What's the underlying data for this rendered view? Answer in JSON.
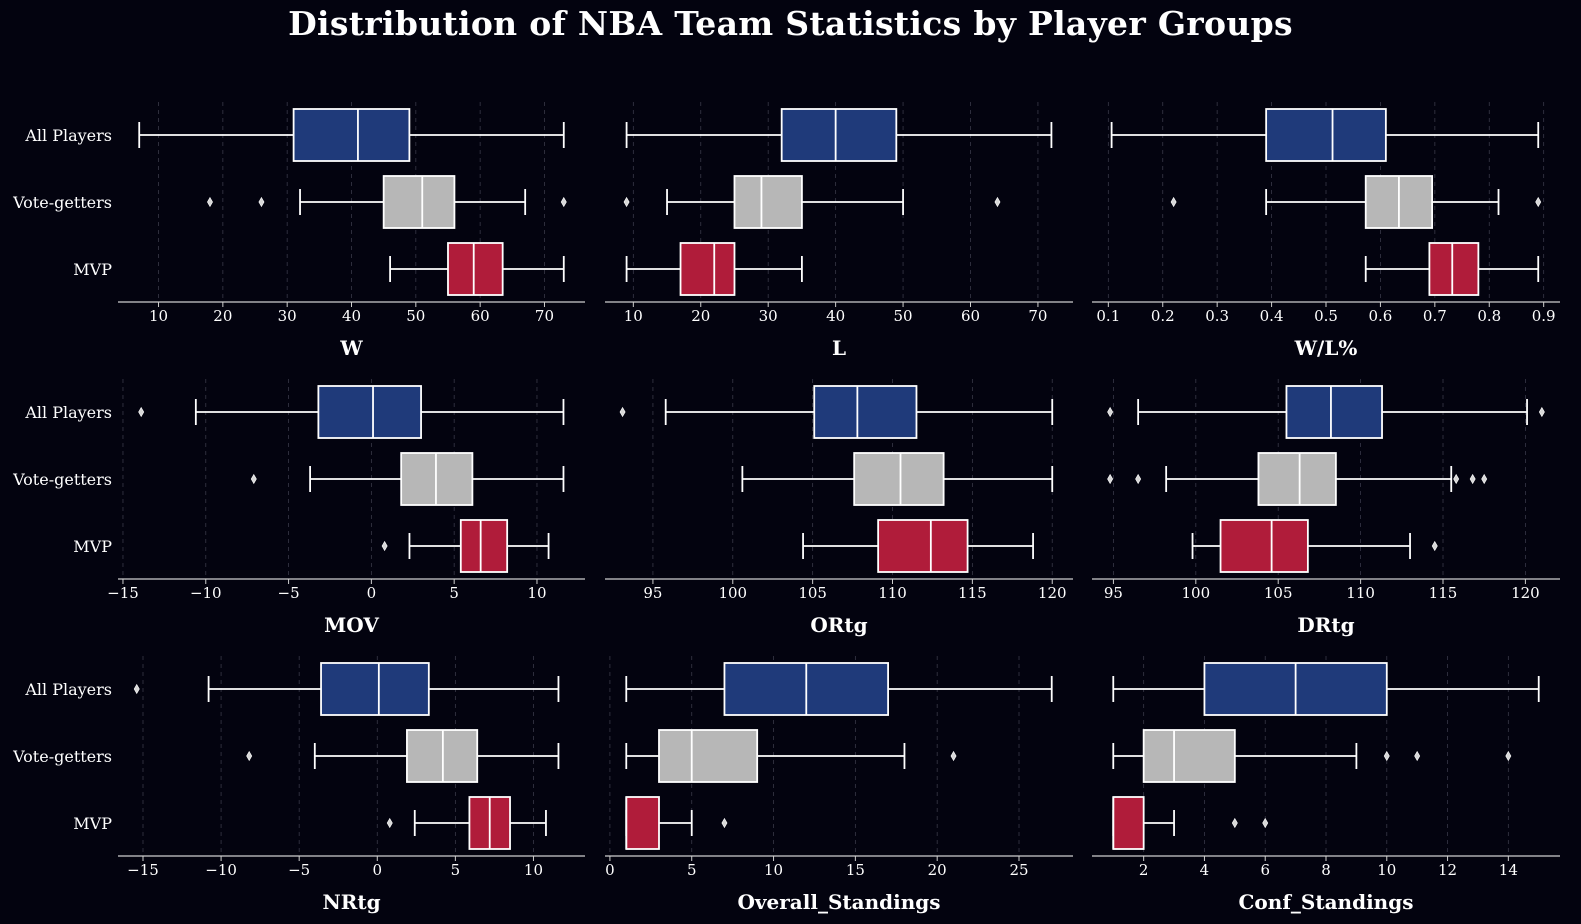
{
  "title": "Distribution of NBA Team Statistics by Player Groups",
  "colors": {
    "background": "#03030f",
    "all_players": "#1f3a7a",
    "vote_getters": "#b7b7b7",
    "mvp": "#b01c3a",
    "grid": "#4a4a5a",
    "text": "#ffffff",
    "axis_line": "#cfcfcf"
  },
  "groups": [
    "All Players",
    "Vote-getters",
    "MVP"
  ],
  "chart_data": [
    {
      "type": "box",
      "xlabel": "W",
      "xlim": [
        3.7,
        76.3
      ],
      "ticks": [
        10,
        20,
        30,
        40,
        50,
        60,
        70
      ],
      "tick_labels": [
        "10",
        "20",
        "30",
        "40",
        "50",
        "60",
        "70"
      ],
      "grid": true,
      "boxes": [
        {
          "group": "All Players",
          "whisker_low": 7,
          "q1": 31,
          "median": 41,
          "q3": 49,
          "whisker_high": 73,
          "outliers": []
        },
        {
          "group": "Vote-getters",
          "whisker_low": 32,
          "q1": 45,
          "median": 51,
          "q3": 56,
          "whisker_high": 67,
          "outliers": [
            18,
            26,
            73
          ]
        },
        {
          "group": "MVP",
          "whisker_low": 46,
          "q1": 55,
          "median": 59,
          "q3": 63.5,
          "whisker_high": 73,
          "outliers": []
        }
      ]
    },
    {
      "type": "box",
      "xlabel": "L",
      "xlim": [
        5.8,
        75.2
      ],
      "ticks": [
        10,
        20,
        30,
        40,
        50,
        60,
        70
      ],
      "tick_labels": [
        "10",
        "20",
        "30",
        "40",
        "50",
        "60",
        "70"
      ],
      "grid": true,
      "boxes": [
        {
          "group": "All Players",
          "whisker_low": 9,
          "q1": 32,
          "median": 40,
          "q3": 49,
          "whisker_high": 72,
          "outliers": []
        },
        {
          "group": "Vote-getters",
          "whisker_low": 15,
          "q1": 25,
          "median": 29,
          "q3": 35,
          "whisker_high": 50,
          "outliers": [
            9,
            64
          ]
        },
        {
          "group": "MVP",
          "whisker_low": 9,
          "q1": 17,
          "median": 22,
          "q3": 25,
          "whisker_high": 35,
          "outliers": []
        }
      ]
    },
    {
      "type": "box",
      "xlabel": "W/L%",
      "xlim": [
        0.07,
        0.93
      ],
      "ticks": [
        0.1,
        0.2,
        0.3,
        0.4,
        0.5,
        0.6,
        0.7,
        0.8,
        0.9
      ],
      "tick_labels": [
        "0.1",
        "0.2",
        "0.3",
        "0.4",
        "0.5",
        "0.6",
        "0.7",
        "0.8",
        "0.9"
      ],
      "grid": true,
      "boxes": [
        {
          "group": "All Players",
          "whisker_low": 0.106,
          "q1": 0.39,
          "median": 0.512,
          "q3": 0.61,
          "whisker_high": 0.89,
          "outliers": []
        },
        {
          "group": "Vote-getters",
          "whisker_low": 0.39,
          "q1": 0.573,
          "median": 0.634,
          "q3": 0.695,
          "whisker_high": 0.817,
          "outliers": [
            0.22,
            0.89
          ]
        },
        {
          "group": "MVP",
          "whisker_low": 0.573,
          "q1": 0.69,
          "median": 0.732,
          "q3": 0.78,
          "whisker_high": 0.89,
          "outliers": []
        }
      ]
    },
    {
      "type": "box",
      "xlabel": "MOV",
      "xlim": [
        -15.3,
        12.9
      ],
      "ticks": [
        -15,
        -10,
        -5,
        0,
        5,
        10
      ],
      "tick_labels": [
        "−15",
        "−10",
        "−5",
        "0",
        "5",
        "10"
      ],
      "grid": true,
      "boxes": [
        {
          "group": "All Players",
          "whisker_low": -10.6,
          "q1": -3.2,
          "median": 0.1,
          "q3": 3,
          "whisker_high": 11.6,
          "outliers": [
            -13.9
          ]
        },
        {
          "group": "Vote-getters",
          "whisker_low": -3.7,
          "q1": 1.8,
          "median": 3.9,
          "q3": 6.1,
          "whisker_high": 11.6,
          "outliers": [
            -7.1
          ]
        },
        {
          "group": "MVP",
          "whisker_low": 2.3,
          "q1": 5.4,
          "median": 6.6,
          "q3": 8.2,
          "whisker_high": 10.7,
          "outliers": [
            0.8
          ]
        }
      ]
    },
    {
      "type": "box",
      "xlabel": "ORtg",
      "xlim": [
        92.0,
        121.3
      ],
      "ticks": [
        95,
        100,
        105,
        110,
        115,
        120
      ],
      "tick_labels": [
        "95",
        "100",
        "105",
        "110",
        "115",
        "120"
      ],
      "grid": true,
      "boxes": [
        {
          "group": "All Players",
          "whisker_low": 95.8,
          "q1": 105.1,
          "median": 107.8,
          "q3": 111.5,
          "whisker_high": 120,
          "outliers": [
            93.1
          ]
        },
        {
          "group": "Vote-getters",
          "whisker_low": 100.6,
          "q1": 107.6,
          "median": 110.5,
          "q3": 113.2,
          "whisker_high": 120,
          "outliers": []
        },
        {
          "group": "MVP",
          "whisker_low": 104.4,
          "q1": 109.1,
          "median": 112.4,
          "q3": 114.7,
          "whisker_high": 118.8,
          "outliers": []
        }
      ]
    },
    {
      "type": "box",
      "xlabel": "DRtg",
      "xlim": [
        93.7,
        122.1
      ],
      "ticks": [
        95,
        100,
        105,
        110,
        115,
        120
      ],
      "tick_labels": [
        "95",
        "100",
        "105",
        "110",
        "115",
        "120"
      ],
      "grid": true,
      "boxes": [
        {
          "group": "All Players",
          "whisker_low": 96.5,
          "q1": 105.5,
          "median": 108.2,
          "q3": 111.3,
          "whisker_high": 120.1,
          "outliers": [
            94.8,
            121
          ]
        },
        {
          "group": "Vote-getters",
          "whisker_low": 98.2,
          "q1": 103.8,
          "median": 106.3,
          "q3": 108.5,
          "whisker_high": 115.5,
          "outliers": [
            94.8,
            96.5,
            115.8,
            116.8,
            117.5
          ]
        },
        {
          "group": "MVP",
          "whisker_low": 99.8,
          "q1": 101.5,
          "median": 104.6,
          "q3": 106.8,
          "whisker_high": 113,
          "outliers": [
            114.5
          ]
        }
      ]
    },
    {
      "type": "box",
      "xlabel": "NRtg",
      "xlim": [
        -16.6,
        13.3
      ],
      "ticks": [
        -15,
        -10,
        -5,
        0,
        5,
        10
      ],
      "tick_labels": [
        "−15",
        "−10",
        "−5",
        "0",
        "5",
        "10"
      ],
      "grid": true,
      "boxes": [
        {
          "group": "All Players",
          "whisker_low": -10.8,
          "q1": -3.6,
          "median": 0.1,
          "q3": 3.3,
          "whisker_high": 11.6,
          "outliers": [
            -15.4
          ]
        },
        {
          "group": "Vote-getters",
          "whisker_low": -4,
          "q1": 1.9,
          "median": 4.2,
          "q3": 6.4,
          "whisker_high": 11.6,
          "outliers": [
            -8.2
          ]
        },
        {
          "group": "MVP",
          "whisker_low": 2.4,
          "q1": 5.9,
          "median": 7.2,
          "q3": 8.5,
          "whisker_high": 10.8,
          "outliers": [
            0.8
          ]
        }
      ]
    },
    {
      "type": "box",
      "xlabel": "Overall_Standings",
      "xlim": [
        -0.3,
        28.3
      ],
      "ticks": [
        0,
        5,
        10,
        15,
        20,
        25
      ],
      "tick_labels": [
        "0",
        "5",
        "10",
        "15",
        "20",
        "25"
      ],
      "grid": true,
      "boxes": [
        {
          "group": "All Players",
          "whisker_low": 1,
          "q1": 7,
          "median": 12,
          "q3": 17,
          "whisker_high": 27,
          "outliers": []
        },
        {
          "group": "Vote-getters",
          "whisker_low": 1,
          "q1": 3,
          "median": 5,
          "q3": 9,
          "whisker_high": 18,
          "outliers": [
            21
          ]
        },
        {
          "group": "MVP",
          "whisker_low": 1,
          "q1": 1,
          "median": 1,
          "q3": 3,
          "whisker_high": 5,
          "outliers": [
            7
          ]
        }
      ]
    },
    {
      "type": "box",
      "xlabel": "Conf_Standings",
      "xlim": [
        0.3,
        15.7
      ],
      "ticks": [
        2,
        4,
        6,
        8,
        10,
        12,
        14
      ],
      "tick_labels": [
        "2",
        "4",
        "6",
        "8",
        "10",
        "12",
        "14"
      ],
      "grid": true,
      "boxes": [
        {
          "group": "All Players",
          "whisker_low": 1,
          "q1": 4,
          "median": 7,
          "q3": 10,
          "whisker_high": 15,
          "outliers": []
        },
        {
          "group": "Vote-getters",
          "whisker_low": 1,
          "q1": 2,
          "median": 3,
          "q3": 5,
          "whisker_high": 9,
          "outliers": [
            10,
            11,
            14
          ]
        },
        {
          "group": "MVP",
          "whisker_low": 1,
          "q1": 1,
          "median": 1,
          "q3": 2,
          "whisker_high": 3,
          "outliers": [
            5,
            6
          ]
        }
      ]
    }
  ]
}
